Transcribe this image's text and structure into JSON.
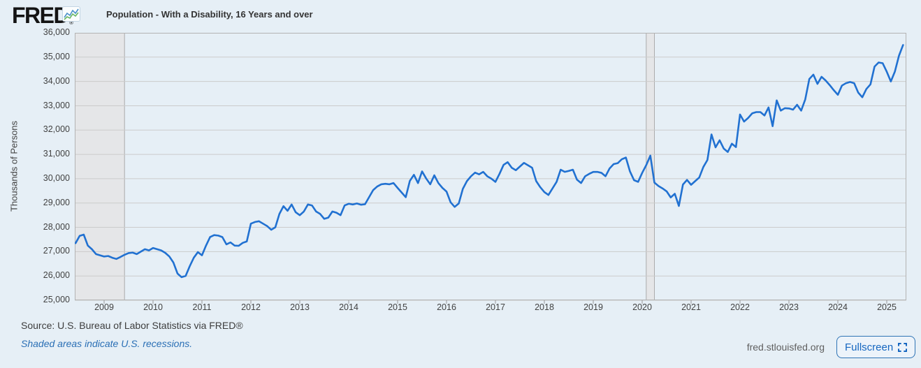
{
  "header": {
    "logo_text": "FRED",
    "registered_mark": "®",
    "legend_label": "Population - With a Disability, 16 Years and over"
  },
  "footer": {
    "source_text": "Source: U.S. Bureau of Labor Statistics via FRED®",
    "recession_note": "Shaded areas indicate U.S. recessions.",
    "site_text": "fred.stlouisfed.org",
    "fullscreen_label": "Fullscreen"
  },
  "colors": {
    "page_background": "#e6eff6",
    "plot_background": "#ffffff",
    "line": "#2171d1",
    "gridline": "#cbcbcb",
    "plot_border": "#b3b3b3",
    "recession_fill": "#e5e6e8",
    "recession_edge": "#ababab",
    "link_blue": "#2a6fb5",
    "button_blue": "#1566c0"
  },
  "chart_data": {
    "type": "line",
    "title": "Population - With a Disability, 16 Years and over",
    "xlabel": "",
    "ylabel": "Thousands of Persons",
    "units": "Thousands of Persons",
    "frequency": "monthly",
    "start": "2008-06",
    "end": "2025-05",
    "ylim": [
      25000,
      36000
    ],
    "grid": true,
    "legend_position": "top-left",
    "y_ticks": [
      "36,000",
      "35,000",
      "34,000",
      "33,000",
      "32,000",
      "31,000",
      "30,000",
      "29,000",
      "28,000",
      "27,000",
      "26,000",
      "25,000"
    ],
    "x_ticks": [
      2009,
      2010,
      2011,
      2012,
      2013,
      2014,
      2015,
      2016,
      2017,
      2018,
      2019,
      2020,
      2021,
      2022,
      2023,
      2024,
      2025
    ],
    "recessions": [
      {
        "from": "2008-06",
        "to": "2009-06"
      },
      {
        "from": "2020-02",
        "to": "2020-04"
      }
    ],
    "series": [
      {
        "name": "Population - With a Disability, 16 Years and over",
        "color": "#2171d1",
        "values": [
          27350,
          27650,
          27700,
          27250,
          27100,
          26900,
          26850,
          26800,
          26820,
          26750,
          26700,
          26780,
          26870,
          26940,
          26960,
          26900,
          27000,
          27100,
          27050,
          27150,
          27100,
          27050,
          26950,
          26800,
          26550,
          26100,
          25950,
          26000,
          26400,
          26750,
          26980,
          26850,
          27250,
          27600,
          27680,
          27660,
          27600,
          27300,
          27380,
          27250,
          27240,
          27360,
          27420,
          28150,
          28220,
          28250,
          28150,
          28050,
          27900,
          28000,
          28550,
          28870,
          28680,
          28940,
          28620,
          28500,
          28650,
          28940,
          28900,
          28650,
          28550,
          28350,
          28400,
          28650,
          28600,
          28500,
          28900,
          28970,
          28940,
          28980,
          28930,
          28950,
          29240,
          29530,
          29680,
          29770,
          29790,
          29770,
          29820,
          29620,
          29430,
          29240,
          29910,
          30160,
          29820,
          30300,
          30010,
          29770,
          30140,
          29820,
          29620,
          29470,
          29030,
          28840,
          28980,
          29580,
          29900,
          30100,
          30250,
          30180,
          30280,
          30100,
          30000,
          29870,
          30200,
          30570,
          30680,
          30450,
          30350,
          30500,
          30650,
          30550,
          30450,
          29900,
          29650,
          29450,
          29330,
          29600,
          29870,
          30370,
          30280,
          30320,
          30370,
          29960,
          29820,
          30100,
          30200,
          30280,
          30280,
          30240,
          30100,
          30420,
          30600,
          30640,
          30800,
          30870,
          30300,
          29940,
          29870,
          30240,
          30560,
          30950,
          29840,
          29700,
          29600,
          29480,
          29230,
          29380,
          28880,
          29760,
          29950,
          29750,
          29900,
          30050,
          30480,
          30770,
          31820,
          31290,
          31580,
          31240,
          31100,
          31440,
          31300,
          32640,
          32350,
          32500,
          32690,
          32740,
          32740,
          32600,
          32930,
          32160,
          33220,
          32800,
          32900,
          32890,
          32840,
          33040,
          32800,
          33260,
          34100,
          34280,
          33900,
          34190,
          34040,
          33850,
          33640,
          33450,
          33830,
          33930,
          33980,
          33930,
          33540,
          33350,
          33690,
          33880,
          34610,
          34780,
          34750,
          34400,
          34000,
          34410,
          35060,
          35500
        ]
      }
    ]
  }
}
